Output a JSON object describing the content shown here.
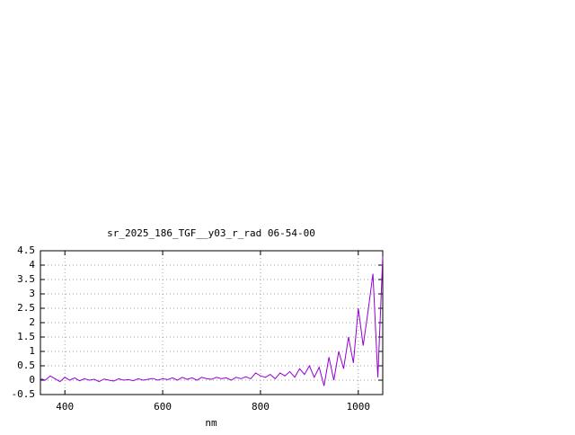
{
  "chart_data": {
    "type": "line",
    "title": "sr_2025_186_TGF__y03_r_rad 06-54-00",
    "x_label": "nm",
    "x": [
      350,
      360,
      370,
      380,
      390,
      400,
      410,
      420,
      430,
      440,
      450,
      460,
      470,
      480,
      490,
      500,
      510,
      520,
      530,
      540,
      550,
      560,
      570,
      580,
      590,
      600,
      610,
      620,
      630,
      640,
      650,
      660,
      670,
      680,
      690,
      700,
      710,
      720,
      730,
      740,
      750,
      760,
      770,
      780,
      790,
      800,
      810,
      820,
      830,
      840,
      850,
      860,
      870,
      880,
      890,
      900,
      910,
      920,
      930,
      940,
      950,
      960,
      970,
      980,
      990,
      1000,
      1010,
      1020,
      1030,
      1040,
      1050
    ],
    "series": [
      {
        "name": null,
        "color": "#9400d3",
        "values": [
          0.05,
          0.0,
          0.15,
          0.05,
          -0.05,
          0.1,
          0.0,
          0.08,
          -0.02,
          0.05,
          0.0,
          0.03,
          -0.05,
          0.04,
          0.0,
          -0.03,
          0.05,
          0.0,
          0.02,
          -0.02,
          0.05,
          0.0,
          0.03,
          0.06,
          0.0,
          0.05,
          0.02,
          0.08,
          0.0,
          0.1,
          0.03,
          0.08,
          0.0,
          0.1,
          0.05,
          0.03,
          0.1,
          0.05,
          0.08,
          0.0,
          0.1,
          0.05,
          0.12,
          0.05,
          0.25,
          0.15,
          0.1,
          0.2,
          0.05,
          0.25,
          0.15,
          0.3,
          0.1,
          0.4,
          0.2,
          0.5,
          0.1,
          0.45,
          -0.2,
          0.8,
          0.0,
          1.0,
          0.4,
          1.5,
          0.6,
          2.5,
          1.2,
          2.4,
          3.7,
          0.1,
          4.3
        ]
      }
    ],
    "xlim": [
      350,
      1050
    ],
    "xticks": [
      400,
      600,
      800,
      1000
    ],
    "ylim": [
      -0.5,
      4.5
    ],
    "yticks": [
      -0.5,
      0,
      0.5,
      1,
      1.5,
      2,
      2.5,
      3,
      3.5,
      4,
      4.5
    ],
    "grid": true
  }
}
